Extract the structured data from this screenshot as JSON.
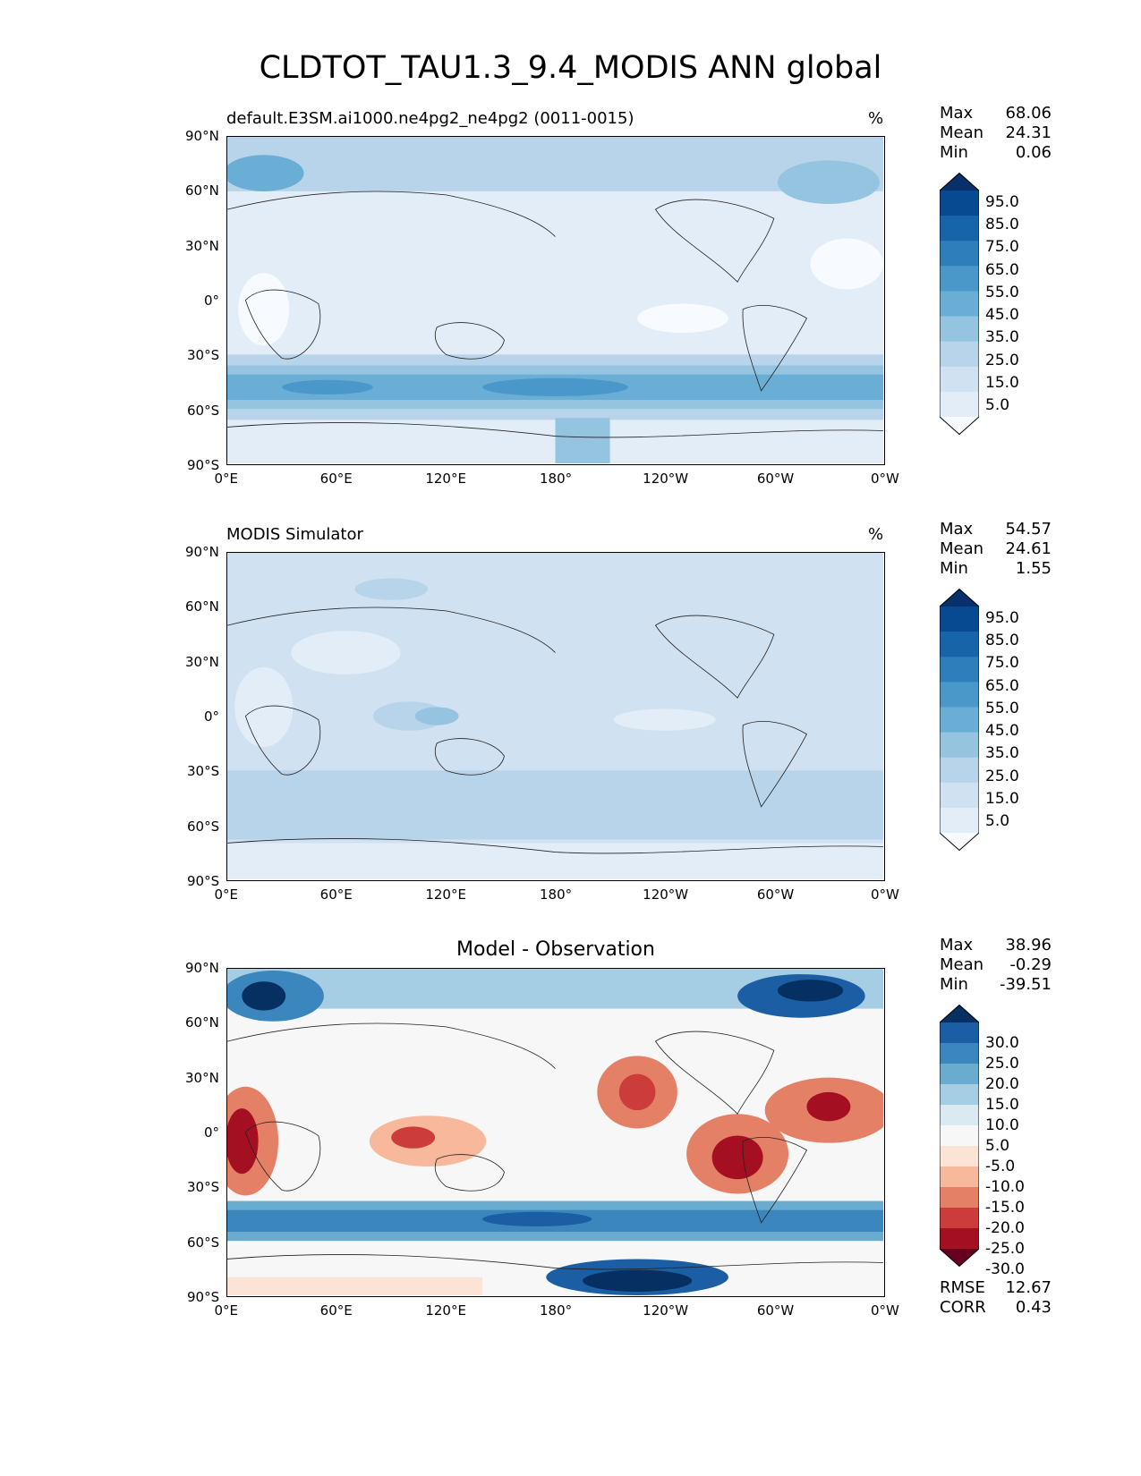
{
  "title": "CLDTOT_TAU1.3_9.4_MODIS ANN global",
  "x_ticks": [
    "0°E",
    "60°E",
    "120°E",
    "180°",
    "120°W",
    "60°W",
    "0°W"
  ],
  "y_ticks": [
    "90°N",
    "60°N",
    "30°N",
    "0°",
    "30°S",
    "60°S",
    "90°S"
  ],
  "colors": {
    "blues": [
      "#f7fbff",
      "#e2edf8",
      "#d0e1f2",
      "#b7d4ea",
      "#94c4df",
      "#6aaed6",
      "#4a98c9",
      "#2e7ebc",
      "#1764ab",
      "#084a91",
      "#08306b"
    ],
    "rdbu": [
      "#67001f",
      "#a50f22",
      "#cc3c3b",
      "#e48065",
      "#f7b89c",
      "#fbe3d6",
      "#f7f7f7",
      "#dbeaf2",
      "#a5cde3",
      "#6aacd0",
      "#3a86bd",
      "#1b5ea3",
      "#053061"
    ]
  },
  "panels": [
    {
      "title_left": "default.E3SM.ai1000.ne4pg2_ne4pg2 (0011-0015)",
      "title_center": "",
      "units": "%",
      "stats": [
        {
          "label": "Max",
          "value": "68.06"
        },
        {
          "label": "Mean",
          "value": "24.31"
        },
        {
          "label": "Min",
          "value": "0.06"
        }
      ],
      "colorbar_labels": [
        "95.0",
        "85.0",
        "75.0",
        "65.0",
        "55.0",
        "45.0",
        "35.0",
        "25.0",
        "15.0",
        "5.0"
      ],
      "bottom_stats": []
    },
    {
      "title_left": "MODIS Simulator",
      "title_center": "",
      "units": "%",
      "stats": [
        {
          "label": "Max",
          "value": "54.57"
        },
        {
          "label": "Mean",
          "value": "24.61"
        },
        {
          "label": "Min",
          "value": "1.55"
        }
      ],
      "colorbar_labels": [
        "95.0",
        "85.0",
        "75.0",
        "65.0",
        "55.0",
        "45.0",
        "35.0",
        "25.0",
        "15.0",
        "5.0"
      ],
      "bottom_stats": []
    },
    {
      "title_left": "",
      "title_center": "Model - Observation",
      "units": "",
      "stats": [
        {
          "label": "Max",
          "value": "38.96"
        },
        {
          "label": "Mean",
          "value": "-0.29"
        },
        {
          "label": "Min",
          "value": "-39.51"
        }
      ],
      "colorbar_labels": [
        "30.0",
        "25.0",
        "20.0",
        "15.0",
        "10.0",
        "5.0",
        "-5.0",
        "-10.0",
        "-15.0",
        "-20.0",
        "-25.0",
        "-30.0"
      ],
      "bottom_stats": [
        {
          "label": "RMSE",
          "value": "12.67"
        },
        {
          "label": "CORR",
          "value": "0.43"
        }
      ]
    }
  ]
}
